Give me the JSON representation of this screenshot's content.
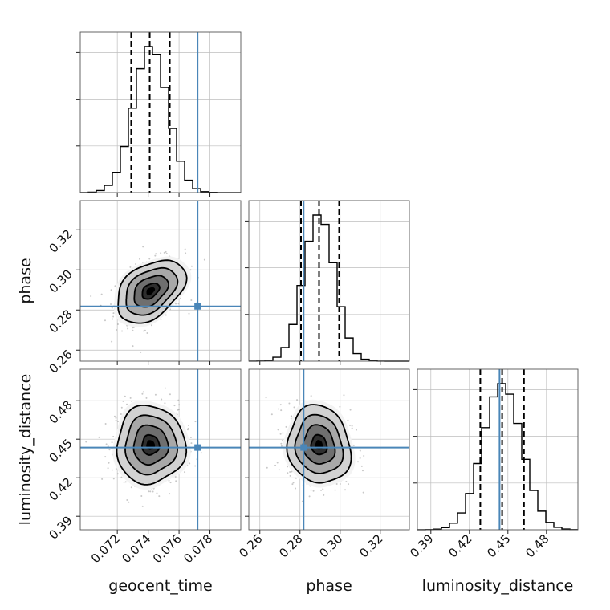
{
  "chart_data": {
    "type": "corner",
    "parameters": [
      {
        "name": "geocent_time",
        "label": "geocent_time",
        "range": [
          0.0696,
          0.08
        ],
        "ticks": [
          "0.072",
          "0.074",
          "0.076",
          "0.078"
        ],
        "mean": 0.07415,
        "std": 0.00111,
        "quantiles": [
          0.0729,
          0.0741,
          0.0754
        ],
        "truth": 0.0772
      },
      {
        "name": "phase",
        "label": "phase",
        "range": [
          0.2545,
          0.3345
        ],
        "ticks": [
          "0.26",
          "0.28",
          "0.30",
          "0.32"
        ],
        "mean": 0.2895,
        "std": 0.0078,
        "quantiles": [
          0.2805,
          0.2895,
          0.2995
        ],
        "truth": 0.2818
      },
      {
        "name": "luminosity_distance",
        "label": "luminosity_distance",
        "range": [
          0.3795,
          0.5045
        ],
        "ticks": [
          "0.39",
          "0.42",
          "0.45",
          "0.48"
        ],
        "mean": 0.4455,
        "std": 0.0152,
        "quantiles": [
          0.4285,
          0.4455,
          0.4625
        ],
        "truth": 0.4435
      }
    ],
    "correlations": {
      "geocent_time|phase": 0.4,
      "geocent_time|luminosity_distance": 0.0,
      "phase|luminosity_distance": -0.1
    },
    "contour_levels_sigma": [
      0.5,
      1.0,
      1.5,
      2.0
    ],
    "histogram_bins": 20,
    "colors": {
      "truth": "#4a86b8",
      "hist": "#000000",
      "scatter": "#9a9a9a"
    }
  }
}
